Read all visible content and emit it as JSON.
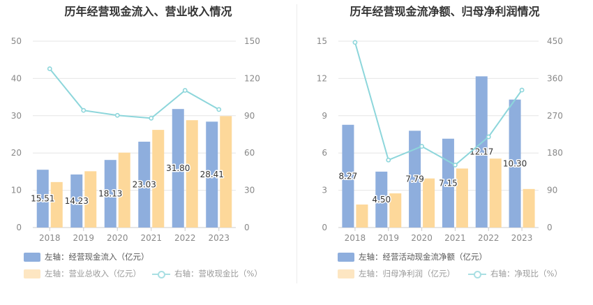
{
  "colors": {
    "bar1": "#8eaedd",
    "bar2": "#fdd89a",
    "line": "#8dd6db",
    "legend_text_active": "#555555",
    "legend_text_dim": "#999999"
  },
  "left": {
    "title": "历年经营现金流入、营业收入情况",
    "legend": {
      "bar1": "左轴：经营现金流入（亿元）",
      "bar2": "左轴：营业总收入（亿元）",
      "line": "右轴：营收现金比（%）"
    }
  },
  "right": {
    "title": "历年经营现金流净额、归母净利润情况",
    "legend": {
      "bar1": "左轴：经营活动现金流净额（亿元）",
      "bar2": "左轴：归母净利润（亿元）",
      "line": "右轴：净现比（%）"
    }
  },
  "chart_data": [
    {
      "type": "bar",
      "title": "历年经营现金流入、营业收入情况",
      "categories": [
        "2018",
        "2019",
        "2020",
        "2021",
        "2022",
        "2023"
      ],
      "series": [
        {
          "name": "左轴：经营现金流入（亿元）",
          "axis": "left",
          "values": [
            15.51,
            14.23,
            18.13,
            23.03,
            31.8,
            28.41
          ],
          "labels": [
            "15.51",
            "14.23",
            "18.13",
            "23.03",
            "31.80",
            "28.41"
          ]
        },
        {
          "name": "左轴：营业总收入（亿元）",
          "axis": "left",
          "values": [
            12.2,
            15.1,
            20.1,
            26.2,
            28.8,
            29.9
          ]
        },
        {
          "name": "右轴：营收现金比（%）",
          "axis": "right",
          "type": "line",
          "values": [
            127.8,
            94.3,
            90.3,
            88.0,
            110.4,
            95.0
          ]
        }
      ],
      "yleft": {
        "min": 0,
        "max": 50,
        "ticks": [
          "0",
          "10",
          "20",
          "30",
          "40",
          "50"
        ]
      },
      "yright": {
        "min": 0,
        "max": 150,
        "ticks": [
          "0",
          "30",
          "60",
          "90",
          "120",
          "150"
        ]
      },
      "grid": true,
      "legend_position": "bottom"
    },
    {
      "type": "bar",
      "title": "历年经营现金流净额、归母净利润情况",
      "categories": [
        "2018",
        "2019",
        "2020",
        "2021",
        "2022",
        "2023"
      ],
      "series": [
        {
          "name": "左轴：经营活动现金流净额（亿元）",
          "axis": "left",
          "values": [
            8.27,
            4.5,
            7.79,
            7.15,
            12.17,
            10.3
          ],
          "labels": [
            "8.27",
            "4.50",
            "7.79",
            "7.15",
            "12.17",
            "10.30"
          ]
        },
        {
          "name": "左轴：归母净利润（亿元）",
          "axis": "left",
          "values": [
            1.85,
            2.75,
            3.95,
            4.75,
            5.55,
            3.1
          ]
        },
        {
          "name": "右轴：净现比（%）",
          "axis": "right",
          "type": "line",
          "values": [
            447,
            163,
            196,
            151,
            219,
            332
          ]
        }
      ],
      "yleft": {
        "min": 0,
        "max": 15,
        "ticks": [
          "0",
          "3",
          "6",
          "9",
          "12",
          "15"
        ]
      },
      "yright": {
        "min": 0,
        "max": 450,
        "ticks": [
          "0",
          "90",
          "180",
          "270",
          "360",
          "450"
        ]
      },
      "grid": true,
      "legend_position": "bottom"
    }
  ]
}
